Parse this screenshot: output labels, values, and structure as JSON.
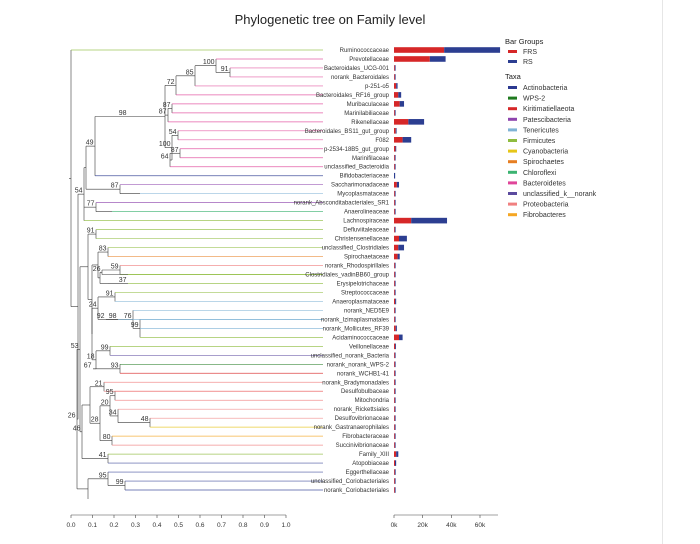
{
  "chart_data": {
    "type": "bar",
    "title": "Phylogenetic tree on Family level",
    "tree_axis": {
      "ticks": [
        "0.0",
        "0.1",
        "0.2",
        "0.3",
        "0.4",
        "0.5",
        "0.6",
        "0.7",
        "0.8",
        "0.9",
        "1.0"
      ],
      "range": [
        0,
        1
      ]
    },
    "bar_axis": {
      "ticks": [
        "0k",
        "20k",
        "40k",
        "60k"
      ],
      "range": [
        0,
        75000
      ]
    },
    "legend_bar_title": "Bar Groups",
    "legend_taxa_title": "Taxa",
    "series": [
      {
        "name": "FRS",
        "color": "#d62728"
      },
      {
        "name": "RS",
        "color": "#2c3e91"
      }
    ],
    "taxa": [
      {
        "name": "Actinobacteria",
        "color": "#2b3990"
      },
      {
        "name": "WPS-2",
        "color": "#1f7a1f"
      },
      {
        "name": "Kiritimatiellaeota",
        "color": "#d62728"
      },
      {
        "name": "Patescibacteria",
        "color": "#8e44ad"
      },
      {
        "name": "Tenericutes",
        "color": "#7fb3d5"
      },
      {
        "name": "Firmicutes",
        "color": "#8fbc3f"
      },
      {
        "name": "Cyanobacteria",
        "color": "#e6c619"
      },
      {
        "name": "Spirochaetes",
        "color": "#e67e22"
      },
      {
        "name": "Chloroflexi",
        "color": "#3cb371"
      },
      {
        "name": "Bacteroidetes",
        "color": "#e0459a"
      },
      {
        "name": "unclassified_k__norank",
        "color": "#5b4a9e"
      },
      {
        "name": "Proteobacteria",
        "color": "#f08080"
      },
      {
        "name": "Fibrobacteres",
        "color": "#f5a623"
      }
    ],
    "families": [
      {
        "name": "Ruminococcaceae",
        "taxon": "Firmicutes",
        "frs": 35000,
        "rs": 39000
      },
      {
        "name": "Prevotellaceae",
        "taxon": "Bacteroidetes",
        "frs": 25000,
        "rs": 11000
      },
      {
        "name": "Bacteroidales_UCG-001",
        "taxon": "Bacteroidetes",
        "frs": 300,
        "rs": 200
      },
      {
        "name": "norank_Bacteroidales",
        "taxon": "Bacteroidetes",
        "frs": 500,
        "rs": 300
      },
      {
        "name": "p-251-o5",
        "taxon": "Bacteroidetes",
        "frs": 1500,
        "rs": 1000
      },
      {
        "name": "Bacteroidales_RF16_group",
        "taxon": "Bacteroidetes",
        "frs": 3000,
        "rs": 2000
      },
      {
        "name": "Muribaculaceae",
        "taxon": "Bacteroidetes",
        "frs": 4000,
        "rs": 3000
      },
      {
        "name": "Marinilabiliaceae",
        "taxon": "Bacteroidetes",
        "frs": 200,
        "rs": 100
      },
      {
        "name": "Rikenellaceae",
        "taxon": "Bacteroidetes",
        "frs": 10000,
        "rs": 11000
      },
      {
        "name": "Bacteroidales_BS11_gut_group",
        "taxon": "Bacteroidetes",
        "frs": 1200,
        "rs": 600
      },
      {
        "name": "F082",
        "taxon": "Bacteroidetes",
        "frs": 6000,
        "rs": 6000
      },
      {
        "name": "p-2534-18B5_gut_group",
        "taxon": "Bacteroidetes",
        "frs": 1000,
        "rs": 500
      },
      {
        "name": "Marinifilaceae",
        "taxon": "Bacteroidetes",
        "frs": 200,
        "rs": 100
      },
      {
        "name": "unclassified_Bacteroidia",
        "taxon": "Bacteroidetes",
        "frs": 300,
        "rs": 200
      },
      {
        "name": "Bifidobacteriaceae",
        "taxon": "Actinobacteria",
        "frs": 0,
        "rs": 800
      },
      {
        "name": "Saccharimonadaceae",
        "taxon": "Patescibacteria",
        "frs": 2000,
        "rs": 1500
      },
      {
        "name": "Mycoplasmataceae",
        "taxon": "Tenericutes",
        "frs": 100,
        "rs": 100
      },
      {
        "name": "norank_Absconditabacteriales_SR1",
        "taxon": "Patescibacteria",
        "frs": 100,
        "rs": 100
      },
      {
        "name": "Anaerolineaceae",
        "taxon": "Chloroflexi",
        "frs": 200,
        "rs": 100
      },
      {
        "name": "Lachnospiraceae",
        "taxon": "Firmicutes",
        "frs": 12000,
        "rs": 25000
      },
      {
        "name": "Defluviitaleaceae",
        "taxon": "Firmicutes",
        "frs": 200,
        "rs": 100
      },
      {
        "name": "Christensenellaceae",
        "taxon": "Firmicutes",
        "frs": 3500,
        "rs": 5500
      },
      {
        "name": "unclassified_Clostridiales",
        "taxon": "Firmicutes",
        "frs": 3000,
        "rs": 4000
      },
      {
        "name": "Spirochaetaceae",
        "taxon": "Spirochaetes",
        "frs": 2500,
        "rs": 1500
      },
      {
        "name": "norank_Rhodospirillales",
        "taxon": "Proteobacteria",
        "frs": 100,
        "rs": 100
      },
      {
        "name": "Clostridiales_vadinBB60_group",
        "taxon": "Firmicutes",
        "frs": 200,
        "rs": 100
      },
      {
        "name": "Erysipelotrichaceae",
        "taxon": "Firmicutes",
        "frs": 200,
        "rs": 100
      },
      {
        "name": "Streptococcaceae",
        "taxon": "Firmicutes",
        "frs": 100,
        "rs": 100
      },
      {
        "name": "Anaeroplasmataceae",
        "taxon": "Tenericutes",
        "frs": 800,
        "rs": 700
      },
      {
        "name": "norank_NED5E9",
        "taxon": "Tenericutes",
        "frs": 100,
        "rs": 100
      },
      {
        "name": "norank_Izimaplasmatales",
        "taxon": "Tenericutes",
        "frs": 100,
        "rs": 100
      },
      {
        "name": "norank_Mollicutes_RF39",
        "taxon": "Tenericutes",
        "frs": 1200,
        "rs": 800
      },
      {
        "name": "Acidaminococcaceae",
        "taxon": "Firmicutes",
        "frs": 3500,
        "rs": 2500
      },
      {
        "name": "Veillonellaceae",
        "taxon": "Firmicutes",
        "frs": 800,
        "rs": 600
      },
      {
        "name": "unclassified_norank_Bacteria",
        "taxon": "unclassified_k__norank",
        "frs": 100,
        "rs": 100
      },
      {
        "name": "norank_norank_WPS-2",
        "taxon": "WPS-2",
        "frs": 100,
        "rs": 100
      },
      {
        "name": "norank_WCHB1-41",
        "taxon": "Kiritimatiellaeota",
        "frs": 500,
        "rs": 300
      },
      {
        "name": "norank_Bradymonadales",
        "taxon": "Proteobacteria",
        "frs": 100,
        "rs": 100
      },
      {
        "name": "Desulfobulbaceae",
        "taxon": "Proteobacteria",
        "frs": 100,
        "rs": 100
      },
      {
        "name": "Mitochondria",
        "taxon": "Proteobacteria",
        "frs": 100,
        "rs": 100
      },
      {
        "name": "norank_Rickettsiales",
        "taxon": "Proteobacteria",
        "frs": 100,
        "rs": 100
      },
      {
        "name": "Desulfovibrionaceae",
        "taxon": "Proteobacteria",
        "frs": 200,
        "rs": 100
      },
      {
        "name": "norank_Gastranaerophilales",
        "taxon": "Cyanobacteria",
        "frs": 100,
        "rs": 100
      },
      {
        "name": "Fibrobacteraceae",
        "taxon": "Fibrobacteres",
        "frs": 200,
        "rs": 100
      },
      {
        "name": "Succinivibrionaceae",
        "taxon": "Proteobacteria",
        "frs": 200,
        "rs": 100
      },
      {
        "name": "Family_XIII",
        "taxon": "Firmicutes",
        "frs": 1500,
        "rs": 1500
      },
      {
        "name": "Atopobiaceae",
        "taxon": "Actinobacteria",
        "frs": 700,
        "rs": 800
      },
      {
        "name": "Eggerthellaceae",
        "taxon": "Actinobacteria",
        "frs": 500,
        "rs": 600
      },
      {
        "name": "unclassified_Coriobacteriales",
        "taxon": "Actinobacteria",
        "frs": 100,
        "rs": 100
      },
      {
        "name": "norank_Coriobacteriales",
        "taxon": "Actinobacteria",
        "frs": 100,
        "rs": 100
      }
    ],
    "bootstrap_labels": [
      "100",
      "91",
      "85",
      "72",
      "87",
      "87",
      "100",
      "54",
      "64",
      "87",
      "98",
      "49",
      "87",
      "77",
      "54",
      "91",
      "83",
      "26",
      "59",
      "37",
      "24",
      "91",
      "76",
      "99",
      "92",
      "98",
      "53",
      "99",
      "18",
      "67",
      "93",
      "21",
      "95",
      "20",
      "28",
      "34",
      "26",
      "48",
      "80",
      "46",
      "41",
      "95",
      "99"
    ]
  }
}
